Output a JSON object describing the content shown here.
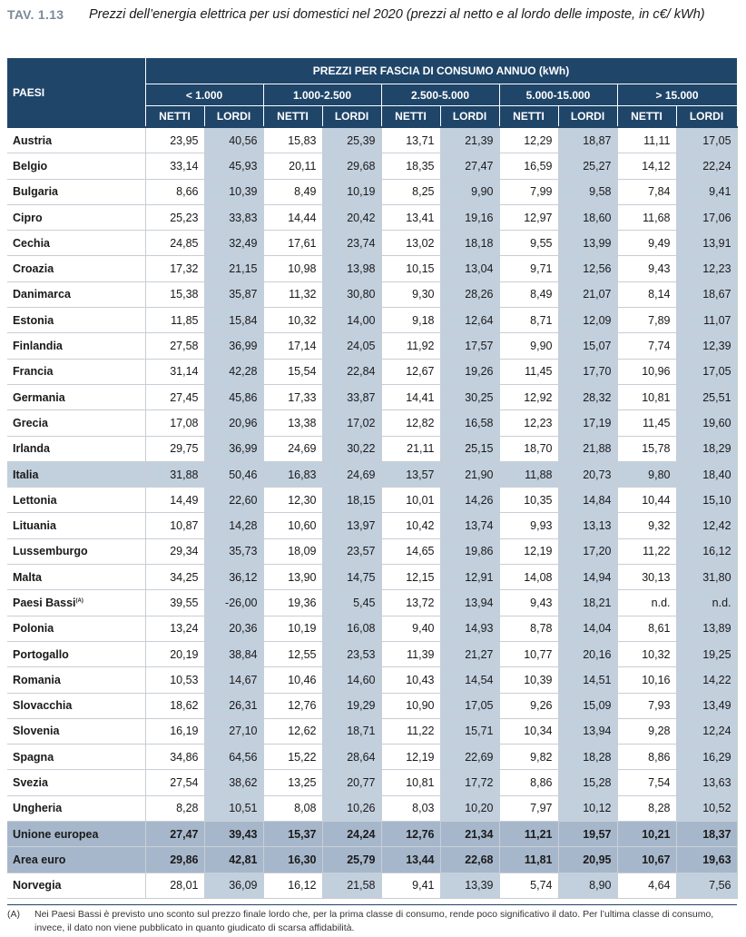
{
  "tav_label": "TAV. 1.13",
  "title": "Prezzi dell’energia elettrica per usi domestici nel 2020 (prezzi al netto e al lordo delle imposte, in c€/ kWh)",
  "header": {
    "paesi": "PAESI",
    "group": "PREZZI PER FASCIA DI CONSUMO ANNUO (kWh)",
    "fasce": [
      "< 1.000",
      "1.000-2.500",
      "2.500-5.000",
      "5.000-15.000",
      "> 15.000"
    ],
    "netti": "NETTI",
    "lordi": "LORDI"
  },
  "rows": [
    {
      "name": "Austria",
      "v": [
        "23,95",
        "40,56",
        "15,83",
        "25,39",
        "13,71",
        "21,39",
        "12,29",
        "18,87",
        "11,11",
        "17,05"
      ]
    },
    {
      "name": "Belgio",
      "v": [
        "33,14",
        "45,93",
        "20,11",
        "29,68",
        "18,35",
        "27,47",
        "16,59",
        "25,27",
        "14,12",
        "22,24"
      ]
    },
    {
      "name": "Bulgaria",
      "v": [
        "8,66",
        "10,39",
        "8,49",
        "10,19",
        "8,25",
        "9,90",
        "7,99",
        "9,58",
        "7,84",
        "9,41"
      ]
    },
    {
      "name": "Cipro",
      "v": [
        "25,23",
        "33,83",
        "14,44",
        "20,42",
        "13,41",
        "19,16",
        "12,97",
        "18,60",
        "11,68",
        "17,06"
      ]
    },
    {
      "name": "Cechia",
      "v": [
        "24,85",
        "32,49",
        "17,61",
        "23,74",
        "13,02",
        "18,18",
        "9,55",
        "13,99",
        "9,49",
        "13,91"
      ]
    },
    {
      "name": "Croazia",
      "v": [
        "17,32",
        "21,15",
        "10,98",
        "13,98",
        "10,15",
        "13,04",
        "9,71",
        "12,56",
        "9,43",
        "12,23"
      ]
    },
    {
      "name": "Danimarca",
      "v": [
        "15,38",
        "35,87",
        "11,32",
        "30,80",
        "9,30",
        "28,26",
        "8,49",
        "21,07",
        "8,14",
        "18,67"
      ]
    },
    {
      "name": "Estonia",
      "v": [
        "11,85",
        "15,84",
        "10,32",
        "14,00",
        "9,18",
        "12,64",
        "8,71",
        "12,09",
        "7,89",
        "11,07"
      ]
    },
    {
      "name": "Finlandia",
      "v": [
        "27,58",
        "36,99",
        "17,14",
        "24,05",
        "11,92",
        "17,57",
        "9,90",
        "15,07",
        "7,74",
        "12,39"
      ]
    },
    {
      "name": "Francia",
      "v": [
        "31,14",
        "42,28",
        "15,54",
        "22,84",
        "12,67",
        "19,26",
        "11,45",
        "17,70",
        "10,96",
        "17,05"
      ]
    },
    {
      "name": "Germania",
      "v": [
        "27,45",
        "45,86",
        "17,33",
        "33,87",
        "14,41",
        "30,25",
        "12,92",
        "28,32",
        "10,81",
        "25,51"
      ]
    },
    {
      "name": "Grecia",
      "v": [
        "17,08",
        "20,96",
        "13,38",
        "17,02",
        "12,82",
        "16,58",
        "12,23",
        "17,19",
        "11,45",
        "19,60"
      ]
    },
    {
      "name": "Irlanda",
      "v": [
        "29,75",
        "36,99",
        "24,69",
        "30,22",
        "21,11",
        "25,15",
        "18,70",
        "21,88",
        "15,78",
        "18,29"
      ]
    },
    {
      "name": "Italia",
      "v": [
        "31,88",
        "50,46",
        "16,83",
        "24,69",
        "13,57",
        "21,90",
        "11,88",
        "20,73",
        "9,80",
        "18,40"
      ]
    },
    {
      "name": "Lettonia",
      "v": [
        "14,49",
        "22,60",
        "12,30",
        "18,15",
        "10,01",
        "14,26",
        "10,35",
        "14,84",
        "10,44",
        "15,10"
      ]
    },
    {
      "name": "Lituania",
      "v": [
        "10,87",
        "14,28",
        "10,60",
        "13,97",
        "10,42",
        "13,74",
        "9,93",
        "13,13",
        "9,32",
        "12,42"
      ]
    },
    {
      "name": "Lussemburgo",
      "v": [
        "29,34",
        "35,73",
        "18,09",
        "23,57",
        "14,65",
        "19,86",
        "12,19",
        "17,20",
        "11,22",
        "16,12"
      ]
    },
    {
      "name": "Malta",
      "v": [
        "34,25",
        "36,12",
        "13,90",
        "14,75",
        "12,15",
        "12,91",
        "14,08",
        "14,94",
        "30,13",
        "31,80"
      ]
    },
    {
      "name": "Paesi Bassi",
      "sup": "(A)",
      "v": [
        "39,55",
        "-26,00",
        "19,36",
        "5,45",
        "13,72",
        "13,94",
        "9,43",
        "18,21",
        "n.d.",
        "n.d."
      ]
    },
    {
      "name": "Polonia",
      "v": [
        "13,24",
        "20,36",
        "10,19",
        "16,08",
        "9,40",
        "14,93",
        "8,78",
        "14,04",
        "8,61",
        "13,89"
      ]
    },
    {
      "name": "Portogallo",
      "v": [
        "20,19",
        "38,84",
        "12,55",
        "23,53",
        "11,39",
        "21,27",
        "10,77",
        "20,16",
        "10,32",
        "19,25"
      ]
    },
    {
      "name": "Romania",
      "v": [
        "10,53",
        "14,67",
        "10,46",
        "14,60",
        "10,43",
        "14,54",
        "10,39",
        "14,51",
        "10,16",
        "14,22"
      ]
    },
    {
      "name": "Slovacchia",
      "v": [
        "18,62",
        "26,31",
        "12,76",
        "19,29",
        "10,90",
        "17,05",
        "9,26",
        "15,09",
        "7,93",
        "13,49"
      ]
    },
    {
      "name": "Slovenia",
      "v": [
        "16,19",
        "27,10",
        "12,62",
        "18,71",
        "11,22",
        "15,71",
        "10,34",
        "13,94",
        "9,28",
        "12,24"
      ]
    },
    {
      "name": "Spagna",
      "v": [
        "34,86",
        "64,56",
        "15,22",
        "28,64",
        "12,19",
        "22,69",
        "9,82",
        "18,28",
        "8,86",
        "16,29"
      ]
    },
    {
      "name": "Svezia",
      "v": [
        "27,54",
        "38,62",
        "13,25",
        "20,77",
        "10,81",
        "17,72",
        "8,86",
        "15,28",
        "7,54",
        "13,63"
      ]
    },
    {
      "name": "Ungheria",
      "v": [
        "8,28",
        "10,51",
        "8,08",
        "10,26",
        "8,03",
        "10,20",
        "7,97",
        "10,12",
        "8,28",
        "10,52"
      ]
    },
    {
      "name": "Unione europea",
      "v": [
        "27,47",
        "39,43",
        "15,37",
        "24,24",
        "12,76",
        "21,34",
        "11,21",
        "19,57",
        "10,21",
        "18,37"
      ]
    },
    {
      "name": "Area euro",
      "v": [
        "29,86",
        "42,81",
        "16,30",
        "25,79",
        "13,44",
        "22,68",
        "11,81",
        "20,95",
        "10,67",
        "19,63"
      ]
    },
    {
      "name": "Norvegia",
      "v": [
        "28,01",
        "36,09",
        "16,12",
        "21,58",
        "9,41",
        "13,39",
        "5,74",
        "8,90",
        "4,64",
        "7,56"
      ]
    }
  ],
  "highlight_row": "Italia",
  "summary_rows": [
    "Unione europea",
    "Area euro"
  ],
  "note": {
    "tag": "(A)",
    "text": "Nei Paesi Bassi è previsto uno sconto sul prezzo finale lordo che, per la prima classe di consumo, rende poco significativo il dato. Per l’ultima classe di consumo, invece, il dato non viene pubblicato in quanto giudicato di scarsa affidabilità."
  },
  "colors": {
    "header": "#1f4569",
    "lordi": "#c2cfdd",
    "summary": "#a7b7cb",
    "tav": "#7a8a99"
  }
}
